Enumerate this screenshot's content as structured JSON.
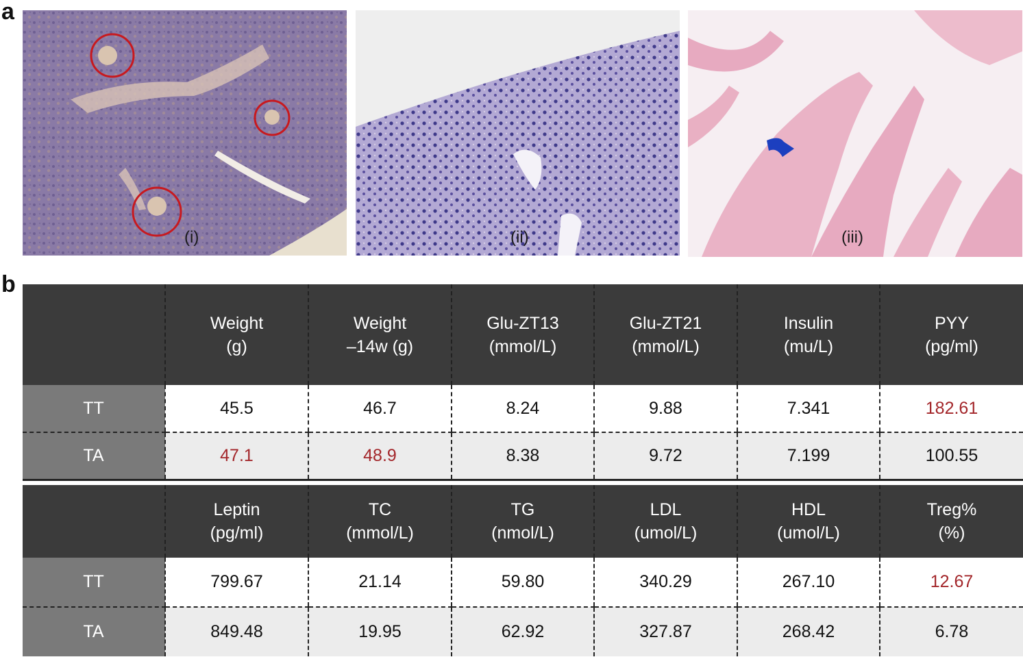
{
  "panels": {
    "a": "a",
    "b": "b"
  },
  "images": [
    {
      "label": "(i)"
    },
    {
      "label": "(ii)"
    },
    {
      "label": "(iii)"
    }
  ],
  "colors": {
    "header_bg": "#3b3b3b",
    "rowlabel_bg": "#7a7a7a",
    "highlight": "#a3262a"
  },
  "table1": {
    "headers": [
      {
        "line1": "",
        "line2": ""
      },
      {
        "line1": "Weight",
        "line2": "(g)"
      },
      {
        "line1": "Weight",
        "line2": "–14w (g)"
      },
      {
        "line1": "Glu-ZT13",
        "line2": "(mmol/L)"
      },
      {
        "line1": "Glu-ZT21",
        "line2": "(mmol/L)"
      },
      {
        "line1": "Insulin",
        "line2": "(mu/L)"
      },
      {
        "line1": "PYY",
        "line2": "(pg/ml)"
      }
    ],
    "rows": [
      {
        "label": "TT",
        "values": [
          "45.5",
          "46.7",
          "8.24",
          "9.88",
          "7.341",
          "182.61"
        ]
      },
      {
        "label": "TA",
        "values": [
          "47.1",
          "48.9",
          "8.38",
          "9.72",
          "7.199",
          "100.55"
        ]
      }
    ]
  },
  "table2": {
    "headers": [
      {
        "line1": "",
        "line2": ""
      },
      {
        "line1": "Leptin",
        "line2": "(pg/ml)"
      },
      {
        "line1": "TC",
        "line2": "(mmol/L)"
      },
      {
        "line1": "TG",
        "line2": "(nmol/L)"
      },
      {
        "line1": "LDL",
        "line2": "(umol/L)"
      },
      {
        "line1": "HDL",
        "line2": "(umol/L)"
      },
      {
        "line1": "Treg%",
        "line2": "(%)"
      }
    ],
    "rows": [
      {
        "label": "TT",
        "values": [
          "799.67",
          "21.14",
          "59.80",
          "340.29",
          "267.10",
          "12.67"
        ]
      },
      {
        "label": "TA",
        "values": [
          "849.48",
          "19.95",
          "62.92",
          "327.87",
          "268.42",
          "6.78"
        ]
      }
    ]
  }
}
